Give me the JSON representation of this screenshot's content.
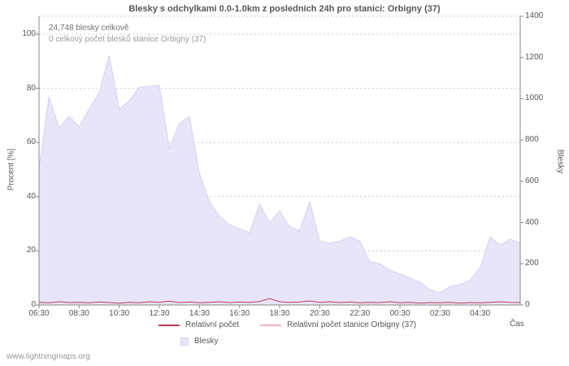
{
  "footer": {
    "link": "www.lightningmaps.org"
  },
  "chart_data": {
    "type": "area",
    "title": "Blesky s odchylkami 0.0-1.0km z posledních 24h pro stanici: Orbigny (37)",
    "xlabel": "Čas",
    "ylabel_left": "Procent  [%]",
    "ylabel_right": "Blesky",
    "ylim_left": [
      0,
      100
    ],
    "ylim_right": [
      0,
      1400
    ],
    "grid": "horizontal-dashed",
    "left_ticks": [
      0,
      20,
      40,
      60,
      80,
      100
    ],
    "right_ticks": [
      0,
      200,
      400,
      600,
      800,
      1000,
      1200,
      1400
    ],
    "x_tick_labels": [
      "06:30",
      "08:30",
      "10:30",
      "12:30",
      "14:30",
      "16:30",
      "18:30",
      "20:30",
      "22:30",
      "00:30",
      "02:30",
      "04:30"
    ],
    "x_start": "06:30",
    "x_step_minutes": 30,
    "points": 49,
    "annotations": [
      "24,748 blesky celkově",
      "0 celkový počet blesků stanice Orbigny (37)"
    ],
    "legend": [
      {
        "label": "Relativní počet",
        "color": "#bf3b52",
        "type": "line"
      },
      {
        "label": "Relativní počet stanice Orbigny (37)",
        "color": "#f3aec4",
        "type": "line"
      },
      {
        "label": "Blesky",
        "color": "#e8e5f9",
        "type": "area"
      }
    ],
    "series": [
      {
        "name": "Blesky",
        "type": "area",
        "axis": "right",
        "color": "#e8e5f9",
        "edge_color": "#d5d0f0",
        "values": [
          660,
          1010,
          860,
          915,
          865,
          950,
          1030,
          1210,
          950,
          990,
          1055,
          1060,
          1065,
          760,
          880,
          915,
          640,
          500,
          430,
          390,
          370,
          350,
          490,
          400,
          455,
          380,
          360,
          500,
          310,
          300,
          310,
          330,
          310,
          210,
          200,
          170,
          150,
          130,
          110,
          75,
          60,
          90,
          100,
          120,
          180,
          330,
          290,
          320,
          300
        ]
      },
      {
        "name": "Relativní počet",
        "type": "line",
        "axis": "left",
        "color": "#bf3b52",
        "values": [
          1.0,
          0.8,
          1.2,
          0.9,
          1.0,
          0.8,
          1.1,
          0.9,
          0.7,
          1.0,
          0.8,
          1.2,
          1.0,
          1.4,
          0.9,
          1.1,
          0.8,
          1.0,
          1.2,
          0.9,
          1.1,
          1.0,
          1.3,
          2.4,
          1.2,
          1.0,
          1.1,
          1.5,
          1.0,
          1.2,
          0.9,
          1.1,
          0.8,
          1.0,
          0.9,
          1.2,
          0.8,
          1.0,
          0.7,
          0.9,
          0.8,
          1.0,
          0.7,
          0.9,
          0.8,
          1.0,
          1.2,
          1.0,
          0.9
        ]
      },
      {
        "name": "Relativní počet stanice Orbigny (37)",
        "type": "line",
        "axis": "left",
        "color": "#f3aec4",
        "values": [
          0,
          0,
          0,
          0,
          0,
          0,
          0,
          0,
          0,
          0,
          0,
          0,
          0,
          0,
          0,
          0,
          0,
          0,
          0,
          0,
          0,
          0,
          0,
          0,
          0,
          0,
          0,
          0,
          0,
          0,
          0,
          0,
          0,
          0,
          0,
          0,
          0,
          0,
          0,
          0,
          0,
          0,
          0,
          0,
          0,
          0,
          0,
          0,
          0
        ]
      }
    ]
  }
}
